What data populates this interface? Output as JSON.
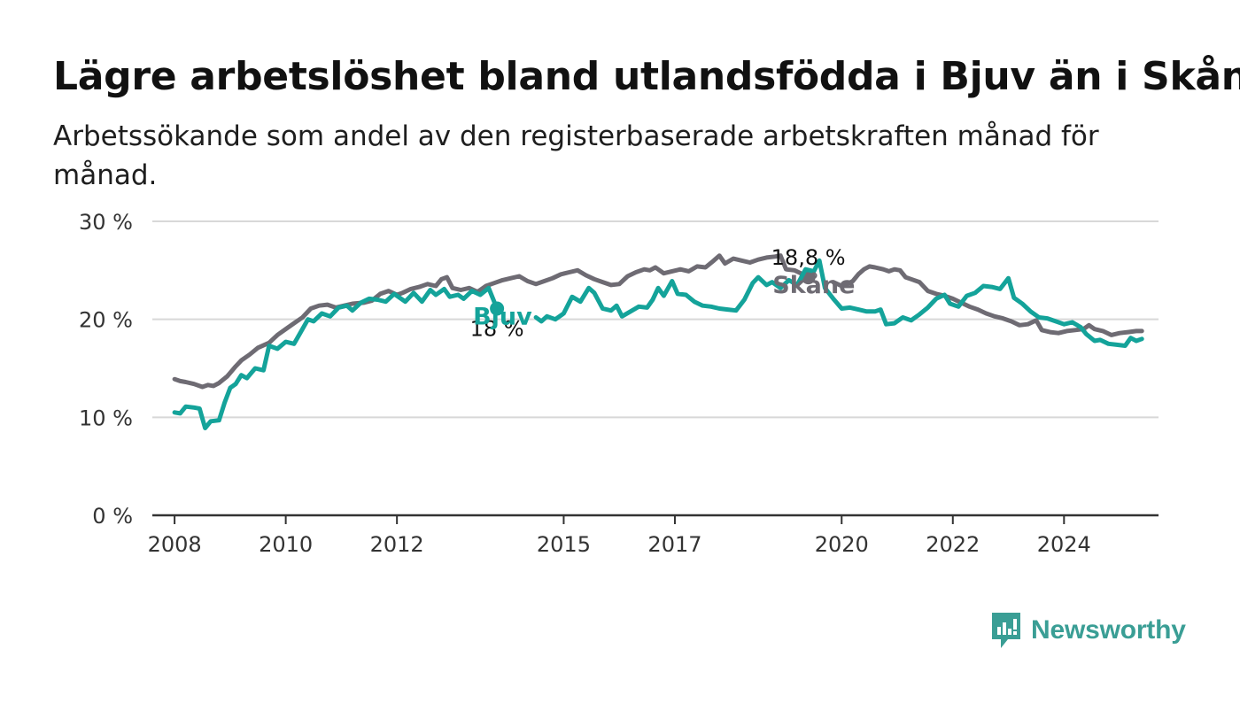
{
  "title": "Lägre arbetslöshet bland utlandsfödda i Bjuv än i Skåne",
  "subtitle": "Arbetssökande som andel av den registerbaserade arbetskraften månad för månad.",
  "brand": {
    "name": "Newsworthy",
    "color": "#3a9e95",
    "icon": "newsworthy-logo-icon"
  },
  "chart_data": {
    "type": "line",
    "xlabel": "",
    "ylabel": "",
    "xlim": [
      2007.6,
      2025.7
    ],
    "ylim": [
      0,
      30
    ],
    "x_ticks": [
      2008,
      2010,
      2012,
      2015,
      2017,
      2020,
      2022,
      2024
    ],
    "y_ticks": [
      0,
      10,
      20,
      30
    ],
    "y_tick_labels": [
      "0 %",
      "10 %",
      "20 %",
      "30 %"
    ],
    "grid": true,
    "series": [
      {
        "name": "Skåne",
        "color": "#6e6b73",
        "end_label": "18,8 %",
        "points": [
          [
            2008.0,
            13.9
          ],
          [
            2008.1,
            13.7
          ],
          [
            2008.2,
            13.6
          ],
          [
            2008.35,
            13.4
          ],
          [
            2008.5,
            13.1
          ],
          [
            2008.6,
            13.3
          ],
          [
            2008.7,
            13.2
          ],
          [
            2008.8,
            13.5
          ],
          [
            2008.95,
            14.2
          ],
          [
            2009.1,
            15.2
          ],
          [
            2009.2,
            15.8
          ],
          [
            2009.35,
            16.4
          ],
          [
            2009.5,
            17.1
          ],
          [
            2009.7,
            17.6
          ],
          [
            2009.85,
            18.4
          ],
          [
            2010.0,
            19.0
          ],
          [
            2010.15,
            19.6
          ],
          [
            2010.3,
            20.2
          ],
          [
            2010.45,
            21.1
          ],
          [
            2010.6,
            21.4
          ],
          [
            2010.75,
            21.5
          ],
          [
            2010.9,
            21.2
          ],
          [
            2011.05,
            21.4
          ],
          [
            2011.2,
            21.6
          ],
          [
            2011.4,
            21.7
          ],
          [
            2011.55,
            21.9
          ],
          [
            2011.7,
            22.6
          ],
          [
            2011.85,
            22.9
          ],
          [
            2012.0,
            22.5
          ],
          [
            2012.1,
            22.7
          ],
          [
            2012.25,
            23.1
          ],
          [
            2012.4,
            23.3
          ],
          [
            2012.55,
            23.6
          ],
          [
            2012.7,
            23.4
          ],
          [
            2012.8,
            24.1
          ],
          [
            2012.9,
            24.3
          ],
          [
            2013.0,
            23.2
          ],
          [
            2013.15,
            23.0
          ],
          [
            2013.3,
            23.2
          ],
          [
            2013.45,
            22.8
          ],
          [
            2013.6,
            23.4
          ],
          [
            2013.75,
            23.7
          ],
          [
            2013.9,
            24.0
          ],
          [
            2014.05,
            24.2
          ],
          [
            2014.2,
            24.4
          ],
          [
            2014.35,
            23.9
          ],
          [
            2014.5,
            23.6
          ],
          [
            2014.65,
            23.9
          ],
          [
            2014.8,
            24.2
          ],
          [
            2014.95,
            24.6
          ],
          [
            2015.1,
            24.8
          ],
          [
            2015.25,
            25.0
          ],
          [
            2015.4,
            24.5
          ],
          [
            2015.55,
            24.1
          ],
          [
            2015.7,
            23.8
          ],
          [
            2015.85,
            23.5
          ],
          [
            2016.0,
            23.6
          ],
          [
            2016.15,
            24.4
          ],
          [
            2016.3,
            24.8
          ],
          [
            2016.45,
            25.1
          ],
          [
            2016.55,
            25.0
          ],
          [
            2016.65,
            25.3
          ],
          [
            2016.8,
            24.7
          ],
          [
            2016.95,
            24.9
          ],
          [
            2017.1,
            25.1
          ],
          [
            2017.25,
            24.9
          ],
          [
            2017.4,
            25.4
          ],
          [
            2017.55,
            25.3
          ],
          [
            2017.7,
            26.0
          ],
          [
            2017.8,
            26.5
          ],
          [
            2017.9,
            25.7
          ],
          [
            2018.05,
            26.2
          ],
          [
            2018.2,
            26.0
          ],
          [
            2018.35,
            25.8
          ],
          [
            2018.5,
            26.1
          ],
          [
            2018.65,
            26.3
          ],
          [
            2018.8,
            26.4
          ],
          [
            2018.9,
            26.5
          ],
          [
            2019.0,
            25.1
          ],
          [
            2019.15,
            25.0
          ],
          [
            2019.3,
            24.6
          ],
          [
            2019.4,
            24.3
          ]
        ]
      },
      {
        "name": "Skåne",
        "color": "#6e6b73",
        "points": [
          [
            2019.85,
            23.8
          ],
          [
            2020.0,
            23.4
          ],
          [
            2020.1,
            23.6
          ],
          [
            2020.2,
            23.9
          ],
          [
            2020.3,
            24.6
          ],
          [
            2020.4,
            25.1
          ],
          [
            2020.5,
            25.4
          ],
          [
            2020.6,
            25.3
          ],
          [
            2020.75,
            25.1
          ],
          [
            2020.85,
            24.9
          ],
          [
            2020.95,
            25.1
          ],
          [
            2021.05,
            25.0
          ],
          [
            2021.15,
            24.3
          ],
          [
            2021.25,
            24.1
          ],
          [
            2021.4,
            23.8
          ],
          [
            2021.55,
            22.9
          ],
          [
            2021.7,
            22.6
          ],
          [
            2021.85,
            22.4
          ],
          [
            2022.0,
            22.1
          ],
          [
            2022.15,
            21.7
          ],
          [
            2022.3,
            21.3
          ],
          [
            2022.45,
            21.0
          ],
          [
            2022.6,
            20.6
          ],
          [
            2022.75,
            20.3
          ],
          [
            2022.9,
            20.1
          ],
          [
            2023.05,
            19.8
          ],
          [
            2023.2,
            19.4
          ],
          [
            2023.35,
            19.5
          ],
          [
            2023.5,
            19.9
          ],
          [
            2023.6,
            18.9
          ],
          [
            2023.75,
            18.7
          ],
          [
            2023.9,
            18.6
          ],
          [
            2024.05,
            18.8
          ],
          [
            2024.2,
            18.9
          ],
          [
            2024.35,
            19.0
          ],
          [
            2024.45,
            19.4
          ],
          [
            2024.55,
            19.0
          ],
          [
            2024.7,
            18.8
          ],
          [
            2024.85,
            18.4
          ],
          [
            2025.0,
            18.6
          ],
          [
            2025.15,
            18.7
          ],
          [
            2025.3,
            18.8
          ],
          [
            2025.4,
            18.8
          ]
        ]
      },
      {
        "name": "Bjuv",
        "color": "#14a39a",
        "end_label": "18 %",
        "points": [
          [
            2008.0,
            10.5
          ],
          [
            2008.1,
            10.4
          ],
          [
            2008.2,
            11.1
          ],
          [
            2008.35,
            11.0
          ],
          [
            2008.45,
            10.9
          ],
          [
            2008.55,
            8.9
          ],
          [
            2008.65,
            9.6
          ],
          [
            2008.8,
            9.7
          ],
          [
            2008.9,
            11.5
          ],
          [
            2009.0,
            13.0
          ],
          [
            2009.1,
            13.4
          ],
          [
            2009.2,
            14.3
          ],
          [
            2009.3,
            14.0
          ],
          [
            2009.45,
            15.0
          ],
          [
            2009.6,
            14.8
          ],
          [
            2009.7,
            17.3
          ],
          [
            2009.85,
            17.0
          ],
          [
            2010.0,
            17.7
          ],
          [
            2010.15,
            17.5
          ],
          [
            2010.25,
            18.5
          ],
          [
            2010.4,
            20.0
          ],
          [
            2010.5,
            19.8
          ],
          [
            2010.65,
            20.6
          ],
          [
            2010.8,
            20.3
          ],
          [
            2010.95,
            21.2
          ],
          [
            2011.1,
            21.4
          ],
          [
            2011.2,
            20.9
          ],
          [
            2011.35,
            21.7
          ],
          [
            2011.5,
            22.1
          ],
          [
            2011.65,
            22.0
          ],
          [
            2011.8,
            21.8
          ],
          [
            2011.95,
            22.6
          ],
          [
            2012.05,
            22.2
          ],
          [
            2012.15,
            21.8
          ],
          [
            2012.3,
            22.7
          ],
          [
            2012.45,
            21.8
          ],
          [
            2012.6,
            23.0
          ],
          [
            2012.7,
            22.5
          ],
          [
            2012.85,
            23.1
          ],
          [
            2012.95,
            22.3
          ],
          [
            2013.1,
            22.5
          ],
          [
            2013.2,
            22.1
          ],
          [
            2013.35,
            22.9
          ],
          [
            2013.5,
            22.5
          ],
          [
            2013.65,
            23.2
          ],
          [
            2013.8,
            21.1
          ]
        ]
      },
      {
        "name": "Bjuv",
        "color": "#14a39a",
        "points": [
          [
            2014.5,
            20.2
          ],
          [
            2014.6,
            19.8
          ],
          [
            2014.7,
            20.3
          ],
          [
            2014.85,
            20.0
          ],
          [
            2015.0,
            20.6
          ],
          [
            2015.15,
            22.3
          ],
          [
            2015.3,
            21.8
          ],
          [
            2015.45,
            23.2
          ],
          [
            2015.55,
            22.7
          ],
          [
            2015.7,
            21.1
          ],
          [
            2015.85,
            20.9
          ],
          [
            2015.95,
            21.4
          ],
          [
            2016.05,
            20.3
          ],
          [
            2016.2,
            20.8
          ],
          [
            2016.35,
            21.3
          ],
          [
            2016.5,
            21.2
          ],
          [
            2016.6,
            22.0
          ],
          [
            2016.7,
            23.2
          ],
          [
            2016.8,
            22.4
          ],
          [
            2016.95,
            23.9
          ],
          [
            2017.05,
            22.6
          ],
          [
            2017.2,
            22.5
          ],
          [
            2017.35,
            21.8
          ],
          [
            2017.5,
            21.4
          ],
          [
            2017.65,
            21.3
          ],
          [
            2017.8,
            21.1
          ],
          [
            2017.95,
            21.0
          ],
          [
            2018.1,
            20.9
          ],
          [
            2018.25,
            22.0
          ],
          [
            2018.4,
            23.7
          ],
          [
            2018.5,
            24.3
          ],
          [
            2018.65,
            23.5
          ],
          [
            2018.75,
            23.8
          ],
          [
            2018.9,
            23.2
          ],
          [
            2019.05,
            24.0
          ],
          [
            2019.2,
            23.5
          ],
          [
            2019.35,
            25.1
          ],
          [
            2019.5,
            24.9
          ],
          [
            2019.6,
            26.0
          ],
          [
            2019.7,
            23.2
          ],
          [
            2019.85,
            22.1
          ],
          [
            2020.0,
            21.1
          ],
          [
            2020.15,
            21.2
          ],
          [
            2020.3,
            21.0
          ],
          [
            2020.45,
            20.8
          ],
          [
            2020.6,
            20.8
          ],
          [
            2020.7,
            21.0
          ],
          [
            2020.8,
            19.5
          ],
          [
            2020.95,
            19.6
          ],
          [
            2021.1,
            20.2
          ],
          [
            2021.25,
            19.9
          ],
          [
            2021.4,
            20.5
          ],
          [
            2021.55,
            21.2
          ],
          [
            2021.7,
            22.1
          ],
          [
            2021.85,
            22.5
          ],
          [
            2021.95,
            21.6
          ],
          [
            2022.1,
            21.3
          ],
          [
            2022.25,
            22.4
          ],
          [
            2022.4,
            22.7
          ],
          [
            2022.55,
            23.4
          ],
          [
            2022.7,
            23.3
          ],
          [
            2022.85,
            23.1
          ],
          [
            2023.0,
            24.2
          ],
          [
            2023.1,
            22.2
          ],
          [
            2023.25,
            21.6
          ],
          [
            2023.4,
            20.8
          ],
          [
            2023.55,
            20.2
          ],
          [
            2023.7,
            20.1
          ],
          [
            2023.85,
            19.8
          ],
          [
            2024.0,
            19.5
          ],
          [
            2024.15,
            19.7
          ],
          [
            2024.3,
            19.2
          ],
          [
            2024.4,
            18.5
          ],
          [
            2024.55,
            17.8
          ],
          [
            2024.65,
            17.9
          ],
          [
            2024.8,
            17.5
          ],
          [
            2024.95,
            17.4
          ],
          [
            2025.1,
            17.3
          ],
          [
            2025.2,
            18.1
          ],
          [
            2025.3,
            17.8
          ],
          [
            2025.4,
            18.0
          ]
        ]
      }
    ],
    "series_labels": [
      {
        "text": "Skåne",
        "color": "#6e6b73",
        "x": 2019.5,
        "y": 23.5
      },
      {
        "text": "Bjuv",
        "color": "#14a39a",
        "x": 2013.9,
        "y": 20.3
      }
    ]
  }
}
